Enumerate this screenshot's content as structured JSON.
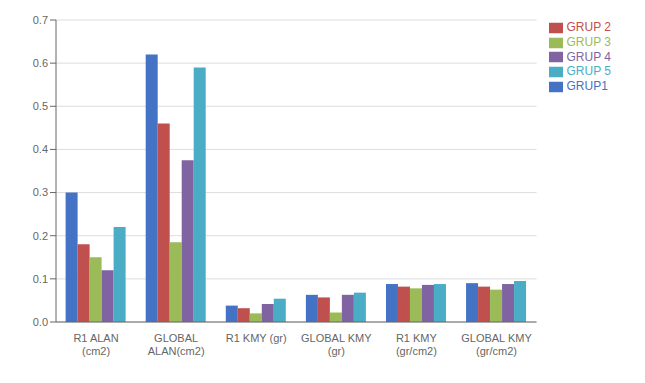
{
  "chart_data": {
    "type": "bar",
    "categories": [
      "R1 ALAN\n(cm2)",
      "GLOBAL\nALAN(cm2)",
      "R1 KMY (gr)",
      "GLOBAL KMY\n(gr)",
      "R1 KMY\n(gr/cm2)",
      "GLOBAL KMY\n(gr/cm2)"
    ],
    "series": [
      {
        "name": "GRUP1",
        "color": "#4472C4",
        "values": [
          0.3,
          0.62,
          0.038,
          0.063,
          0.088,
          0.09
        ]
      },
      {
        "name": "GRUP 2",
        "color": "#C0504D",
        "values": [
          0.18,
          0.46,
          0.032,
          0.057,
          0.082,
          0.082
        ]
      },
      {
        "name": "GRUP 3",
        "color": "#9BBB59",
        "values": [
          0.15,
          0.185,
          0.02,
          0.022,
          0.078,
          0.075
        ]
      },
      {
        "name": "GRUP 4",
        "color": "#8064A2",
        "values": [
          0.12,
          0.375,
          0.042,
          0.063,
          0.086,
          0.088
        ]
      },
      {
        "name": "GRUP 5",
        "color": "#4BACC6",
        "values": [
          0.22,
          0.59,
          0.054,
          0.068,
          0.088,
          0.095
        ]
      }
    ],
    "ylim": [
      0,
      0.7
    ],
    "yticks": [
      {
        "value": 0,
        "label": "0.0"
      },
      0.1,
      0.2,
      0.3,
      0.4,
      0.5,
      0.6,
      0.7
    ],
    "grid": true,
    "legend": "right"
  }
}
